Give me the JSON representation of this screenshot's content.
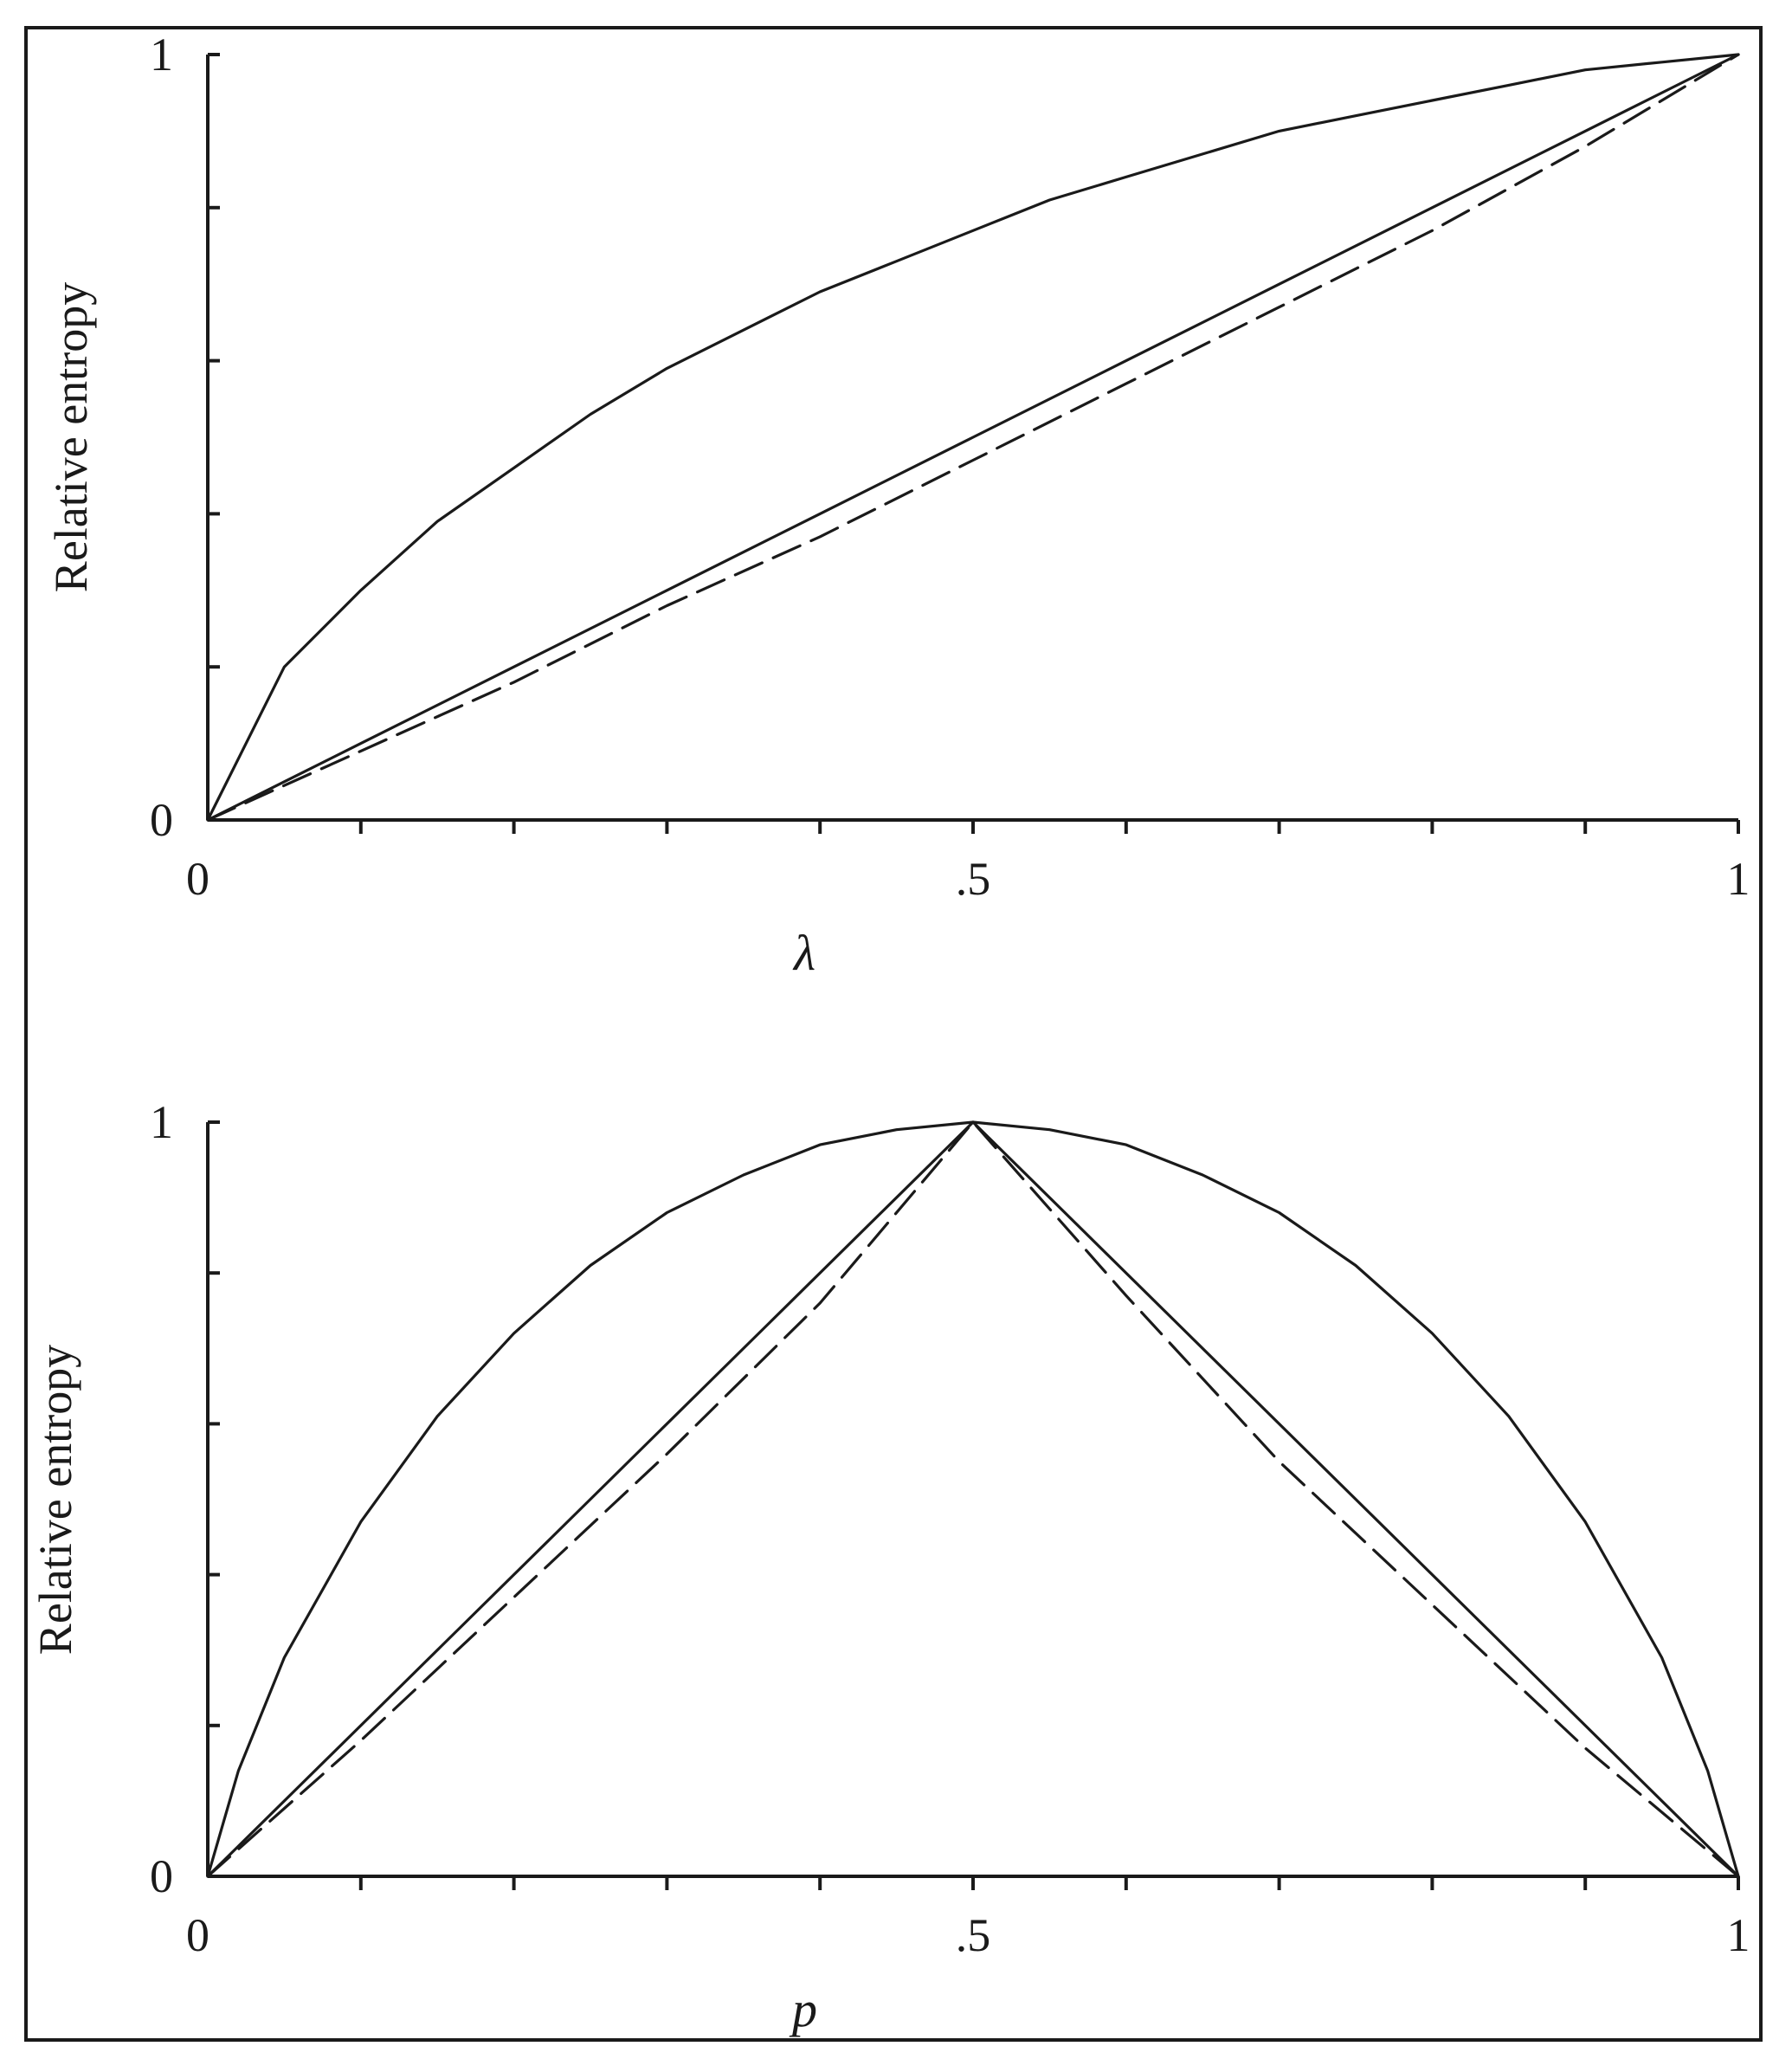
{
  "chart_data": [
    {
      "type": "line",
      "ylabel": "Relative entropy",
      "xlabel": "λ",
      "xlim": [
        0,
        1
      ],
      "ylim": [
        0,
        1
      ],
      "x_tick_labels": [
        "0",
        ".5",
        "1"
      ],
      "y_tick_labels": [
        "0",
        "1"
      ],
      "x_minor_ticks": [
        0.1,
        0.2,
        0.3,
        0.4,
        0.5,
        0.6,
        0.7,
        0.8,
        0.9,
        1.0
      ],
      "y_minor_ticks": [
        0.2,
        0.4,
        0.6,
        0.8,
        1.0
      ],
      "grid": false,
      "series": [
        {
          "style": "solid",
          "x": [
            0,
            0.05,
            0.1,
            0.15,
            0.2,
            0.25,
            0.3,
            0.35,
            0.4,
            0.45,
            0.5,
            0.55,
            0.6,
            0.65,
            0.7,
            0.75,
            0.8,
            0.85,
            0.9,
            0.95,
            1
          ],
          "y": [
            0,
            0.2,
            0.3,
            0.39,
            0.46,
            0.53,
            0.59,
            0.64,
            0.69,
            0.73,
            0.77,
            0.81,
            0.84,
            0.87,
            0.9,
            0.92,
            0.94,
            0.96,
            0.98,
            0.99,
            1
          ]
        },
        {
          "style": "solid",
          "x": [
            0,
            0.05,
            0.1,
            0.2,
            0.3,
            0.4,
            0.5,
            0.6,
            0.7,
            0.8,
            0.9,
            1
          ],
          "y": [
            0,
            0.05,
            0.1,
            0.2,
            0.3,
            0.4,
            0.5,
            0.6,
            0.7,
            0.8,
            0.9,
            1
          ]
        },
        {
          "style": "dashed",
          "x": [
            0,
            0.1,
            0.2,
            0.3,
            0.4,
            0.5,
            0.6,
            0.7,
            0.8,
            0.9,
            1
          ],
          "y": [
            0,
            0.09,
            0.18,
            0.28,
            0.37,
            0.47,
            0.57,
            0.67,
            0.77,
            0.88,
            1
          ]
        }
      ]
    },
    {
      "type": "line",
      "ylabel": "Relative entropy",
      "xlabel": "p",
      "xlim": [
        0,
        1
      ],
      "ylim": [
        0,
        1
      ],
      "x_tick_labels": [
        "0",
        ".5",
        "1"
      ],
      "y_tick_labels": [
        "0",
        "1"
      ],
      "x_minor_ticks": [
        0.1,
        0.2,
        0.3,
        0.4,
        0.5,
        0.6,
        0.7,
        0.8,
        0.9,
        1.0
      ],
      "y_minor_ticks": [
        0.2,
        0.4,
        0.6,
        0.8,
        1.0
      ],
      "grid": false,
      "series": [
        {
          "style": "solid",
          "x": [
            0,
            0.02,
            0.05,
            0.1,
            0.15,
            0.2,
            0.25,
            0.3,
            0.35,
            0.4,
            0.45,
            0.5,
            0.55,
            0.6,
            0.65,
            0.7,
            0.75,
            0.8,
            0.85,
            0.9,
            0.95,
            0.98,
            1
          ],
          "y": [
            0,
            0.14,
            0.29,
            0.47,
            0.61,
            0.72,
            0.81,
            0.88,
            0.93,
            0.97,
            0.99,
            1,
            0.99,
            0.97,
            0.93,
            0.88,
            0.81,
            0.72,
            0.61,
            0.47,
            0.29,
            0.14,
            0
          ]
        },
        {
          "style": "solid",
          "x": [
            0,
            0.5,
            1
          ],
          "y": [
            0,
            1,
            0
          ]
        },
        {
          "style": "dashed",
          "x": [
            0,
            0.1,
            0.2,
            0.3,
            0.4,
            0.5,
            0.6,
            0.7,
            0.8,
            0.9,
            1
          ],
          "y": [
            0,
            0.18,
            0.37,
            0.56,
            0.76,
            1,
            0.77,
            0.55,
            0.36,
            0.17,
            0
          ]
        }
      ]
    }
  ]
}
